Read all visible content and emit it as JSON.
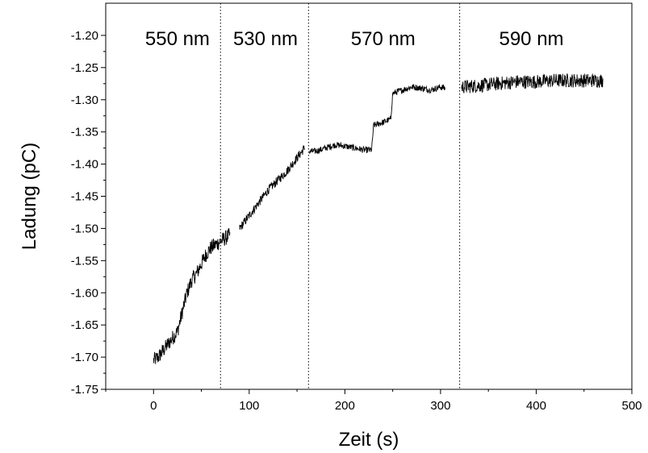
{
  "chart_data": {
    "type": "line",
    "title": "",
    "xlabel": "Zeit (s)",
    "ylabel": "Ladung (pC)",
    "xlim": [
      -50,
      500
    ],
    "ylim": [
      -1.75,
      -1.15
    ],
    "x_ticks": [
      0,
      100,
      200,
      300,
      400,
      500
    ],
    "x_tick_labels": [
      "0",
      "100",
      "200",
      "300",
      "400",
      "500"
    ],
    "y_ticks": [
      -1.75,
      -1.7,
      -1.65,
      -1.6,
      -1.55,
      -1.5,
      -1.45,
      -1.4,
      -1.35,
      -1.3,
      -1.25,
      -1.2
    ],
    "y_tick_labels": [
      "-1.75",
      "-1.70",
      "-1.65",
      "-1.60",
      "-1.55",
      "-1.50",
      "-1.45",
      "-1.40",
      "-1.35",
      "-1.30",
      "-1.25",
      "-1.20"
    ],
    "grid": false,
    "line_color": "#000000",
    "dividers_x": [
      70,
      162,
      320
    ],
    "regions": [
      {
        "label": "550 nm",
        "x_center": 25
      },
      {
        "label": "530 nm",
        "x_center": 117
      },
      {
        "label": "570 nm",
        "x_center": 240
      },
      {
        "label": "590 nm",
        "x_center": 395
      }
    ],
    "series": [
      {
        "segments": [
          {
            "x": [
              0,
              5,
              10,
              15,
              20,
              25,
              30,
              35,
              40,
              45,
              50,
              55,
              60,
              65,
              70,
              75,
              80
            ],
            "y": [
              -1.705,
              -1.7,
              -1.69,
              -1.68,
              -1.67,
              -1.66,
              -1.63,
              -1.6,
              -1.58,
              -1.57,
              -1.555,
              -1.54,
              -1.53,
              -1.525,
              -1.52,
              -1.515,
              -1.51
            ],
            "noise": 0.012
          },
          {
            "x": [
              90,
              100,
              110,
              120,
              130,
              140,
              150,
              158
            ],
            "y": [
              -1.5,
              -1.48,
              -1.46,
              -1.44,
              -1.425,
              -1.41,
              -1.39,
              -1.375
            ],
            "noise": 0.007
          },
          {
            "x": [
              163,
              170,
              180,
              190,
              200,
              210,
              220,
              228,
              230,
              240,
              248,
              250,
              260,
              270,
              280,
              290,
              300,
              305
            ],
            "y": [
              -1.38,
              -1.38,
              -1.375,
              -1.37,
              -1.372,
              -1.375,
              -1.378,
              -1.378,
              -1.34,
              -1.335,
              -1.33,
              -1.29,
              -1.285,
              -1.28,
              -1.282,
              -1.285,
              -1.28,
              -1.282
            ],
            "noise": 0.005
          },
          {
            "x": [
              322,
              340,
              360,
              380,
              400,
              420,
              440,
              460,
              470
            ],
            "y": [
              -1.28,
              -1.278,
              -1.275,
              -1.272,
              -1.272,
              -1.27,
              -1.27,
              -1.27,
              -1.27
            ],
            "noise": 0.011
          }
        ]
      }
    ]
  }
}
